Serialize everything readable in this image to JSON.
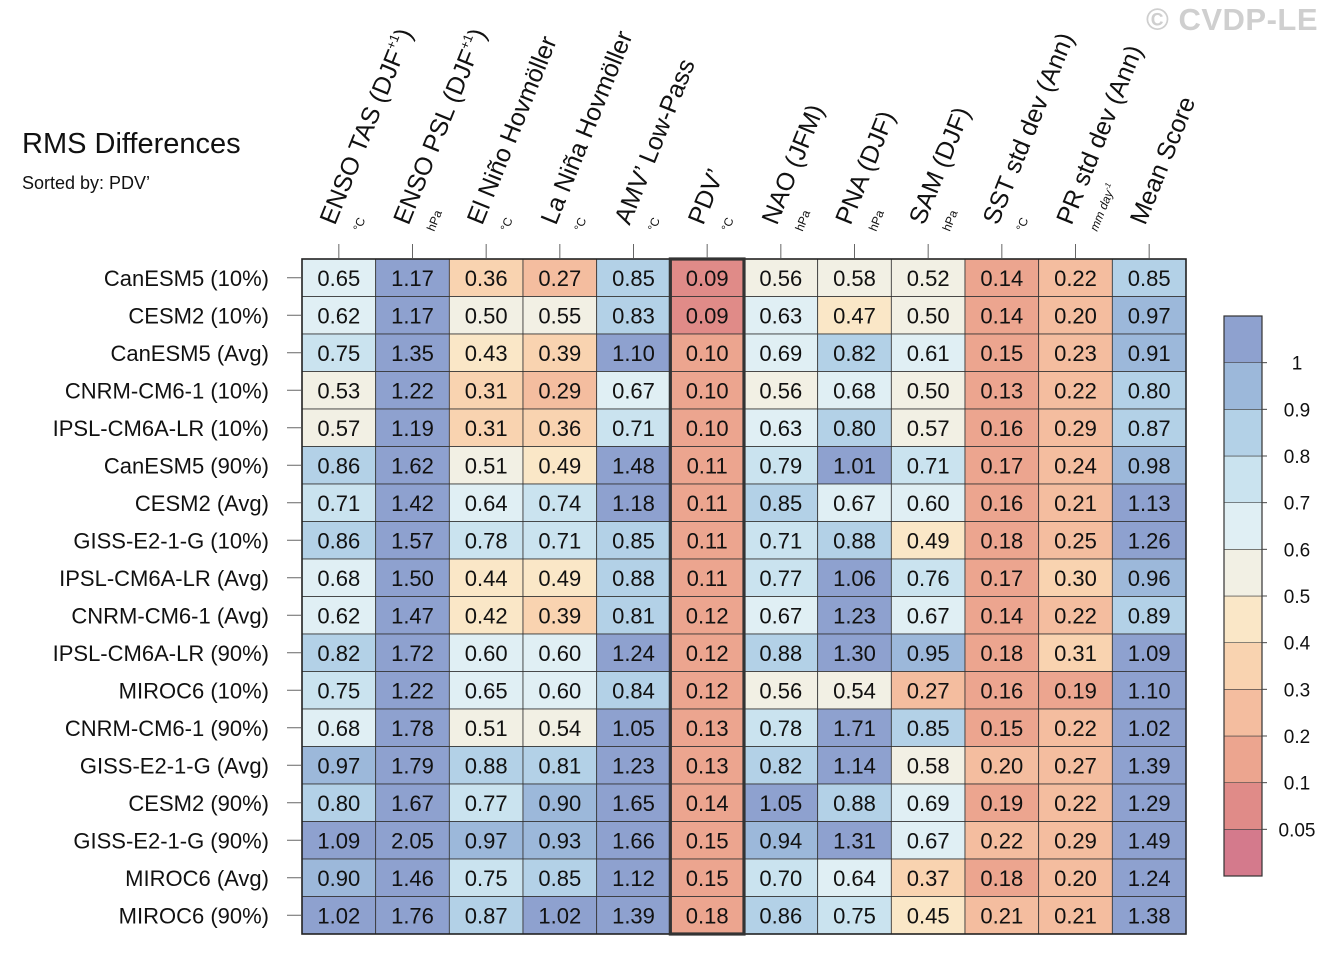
{
  "watermark": "© CVDP-LE",
  "chart_data": {
    "type": "heatmap",
    "title": "RMS Differences",
    "subtitle": "Sorted by: PDV’",
    "highlighted_column": "PDV’",
    "columns": [
      {
        "name": "ENSO TAS (DJF+1)",
        "label": "ENSO TAS (DJF",
        "sup": "+1",
        "label_end": ")",
        "units": "°C"
      },
      {
        "name": "ENSO PSL (DJF+1)",
        "label": "ENSO PSL (DJF",
        "sup": "+1",
        "label_end": ")",
        "units": "hPa"
      },
      {
        "name": "El Niño Hovmöller",
        "label": "El Niño Hovmöller",
        "sup": "",
        "label_end": "",
        "units": "°C"
      },
      {
        "name": "La Niña Hovmöller",
        "label": "La Niña Hovmöller",
        "sup": "",
        "label_end": "",
        "units": "°C"
      },
      {
        "name": "AMV’ Low-Pass",
        "label": "AMV’ Low-Pass",
        "sup": "",
        "label_end": "",
        "units": "°C"
      },
      {
        "name": "PDV’",
        "label": "PDV’",
        "sup": "",
        "label_end": "",
        "units": "°C"
      },
      {
        "name": "NAO (JFM)",
        "label": "NAO (JFM)",
        "sup": "",
        "label_end": "",
        "units": "hPa"
      },
      {
        "name": "PNA (DJF)",
        "label": "PNA (DJF)",
        "sup": "",
        "label_end": "",
        "units": "hPa"
      },
      {
        "name": "SAM (DJF)",
        "label": "SAM (DJF)",
        "sup": "",
        "label_end": "",
        "units": "hPa"
      },
      {
        "name": "SST std dev (Ann)",
        "label": "SST std dev (Ann)",
        "sup": "",
        "label_end": "",
        "units": "°C"
      },
      {
        "name": "PR std dev (Ann)",
        "label": "PR std dev (Ann)",
        "sup": "",
        "label_end": "",
        "units": "mm day-1"
      },
      {
        "name": "Mean Score",
        "label": "Mean Score",
        "sup": "",
        "label_end": "",
        "units": ""
      }
    ],
    "rows": [
      {
        "model": "CanESM5 (10%)",
        "values": [
          0.65,
          1.17,
          0.36,
          0.27,
          0.85,
          0.09,
          0.56,
          0.58,
          0.52,
          0.14,
          0.22,
          0.85
        ]
      },
      {
        "model": "CESM2 (10%)",
        "values": [
          0.62,
          1.17,
          0.5,
          0.55,
          0.83,
          0.09,
          0.63,
          0.47,
          0.5,
          0.14,
          0.2,
          0.97
        ]
      },
      {
        "model": "CanESM5 (Avg)",
        "values": [
          0.75,
          1.35,
          0.43,
          0.39,
          1.1,
          0.1,
          0.69,
          0.82,
          0.61,
          0.15,
          0.23,
          0.91
        ]
      },
      {
        "model": "CNRM-CM6-1 (10%)",
        "values": [
          0.53,
          1.22,
          0.31,
          0.29,
          0.67,
          0.1,
          0.56,
          0.68,
          0.5,
          0.13,
          0.22,
          0.8
        ]
      },
      {
        "model": "IPSL-CM6A-LR (10%)",
        "values": [
          0.57,
          1.19,
          0.31,
          0.36,
          0.71,
          0.1,
          0.63,
          0.8,
          0.57,
          0.16,
          0.29,
          0.87
        ]
      },
      {
        "model": "CanESM5 (90%)",
        "values": [
          0.86,
          1.62,
          0.51,
          0.49,
          1.48,
          0.11,
          0.79,
          1.01,
          0.71,
          0.17,
          0.24,
          0.98
        ]
      },
      {
        "model": "CESM2 (Avg)",
        "values": [
          0.71,
          1.42,
          0.64,
          0.74,
          1.18,
          0.11,
          0.85,
          0.67,
          0.6,
          0.16,
          0.21,
          1.13
        ]
      },
      {
        "model": "GISS-E2-1-G (10%)",
        "values": [
          0.86,
          1.57,
          0.78,
          0.71,
          0.85,
          0.11,
          0.71,
          0.88,
          0.49,
          0.18,
          0.25,
          1.26
        ]
      },
      {
        "model": "IPSL-CM6A-LR (Avg)",
        "values": [
          0.68,
          1.5,
          0.44,
          0.49,
          0.88,
          0.11,
          0.77,
          1.06,
          0.76,
          0.17,
          0.3,
          0.96
        ]
      },
      {
        "model": "CNRM-CM6-1 (Avg)",
        "values": [
          0.62,
          1.47,
          0.42,
          0.39,
          0.81,
          0.12,
          0.67,
          1.23,
          0.67,
          0.14,
          0.22,
          0.89
        ]
      },
      {
        "model": "IPSL-CM6A-LR (90%)",
        "values": [
          0.82,
          1.72,
          0.6,
          0.6,
          1.24,
          0.12,
          0.88,
          1.3,
          0.95,
          0.18,
          0.31,
          1.09
        ]
      },
      {
        "model": "MIROC6 (10%)",
        "values": [
          0.75,
          1.22,
          0.65,
          0.6,
          0.84,
          0.12,
          0.56,
          0.54,
          0.27,
          0.16,
          0.19,
          1.1
        ]
      },
      {
        "model": "CNRM-CM6-1 (90%)",
        "values": [
          0.68,
          1.78,
          0.51,
          0.54,
          1.05,
          0.13,
          0.78,
          1.71,
          0.85,
          0.15,
          0.22,
          1.02
        ]
      },
      {
        "model": "GISS-E2-1-G (Avg)",
        "values": [
          0.97,
          1.79,
          0.88,
          0.81,
          1.23,
          0.13,
          0.82,
          1.14,
          0.58,
          0.2,
          0.27,
          1.39
        ]
      },
      {
        "model": "CESM2 (90%)",
        "values": [
          0.8,
          1.67,
          0.77,
          0.9,
          1.65,
          0.14,
          1.05,
          0.88,
          0.69,
          0.19,
          0.22,
          1.29
        ]
      },
      {
        "model": "GISS-E2-1-G (90%)",
        "values": [
          1.09,
          2.05,
          0.97,
          0.93,
          1.66,
          0.15,
          0.94,
          1.31,
          0.67,
          0.22,
          0.29,
          1.49
        ]
      },
      {
        "model": "MIROC6 (Avg)",
        "values": [
          0.9,
          1.46,
          0.75,
          0.85,
          1.12,
          0.15,
          0.7,
          0.64,
          0.37,
          0.18,
          0.2,
          1.24
        ]
      },
      {
        "model": "MIROC6 (90%)",
        "values": [
          1.02,
          1.76,
          0.87,
          1.02,
          1.39,
          0.18,
          0.86,
          0.75,
          0.45,
          0.21,
          0.21,
          1.38
        ]
      }
    ],
    "colorbar": {
      "levels": [
        0.05,
        0.1,
        0.2,
        0.3,
        0.4,
        0.5,
        0.6,
        0.7,
        0.8,
        0.9,
        1
      ],
      "tick_labels": [
        "0.05",
        "0.1",
        "0.2",
        "0.3",
        "0.4",
        "0.5",
        "0.6",
        "0.7",
        "0.8",
        "0.9",
        "1"
      ],
      "colors": [
        "#d47a8c",
        "#e08b88",
        "#eca58f",
        "#f4bd9f",
        "#f9d3b0",
        "#fae7c7",
        "#f2f0e4",
        "#e0eff4",
        "#cae3ef",
        "#b3d1e7",
        "#9cb8da",
        "#8ea1cf"
      ],
      "placement": "right"
    }
  }
}
